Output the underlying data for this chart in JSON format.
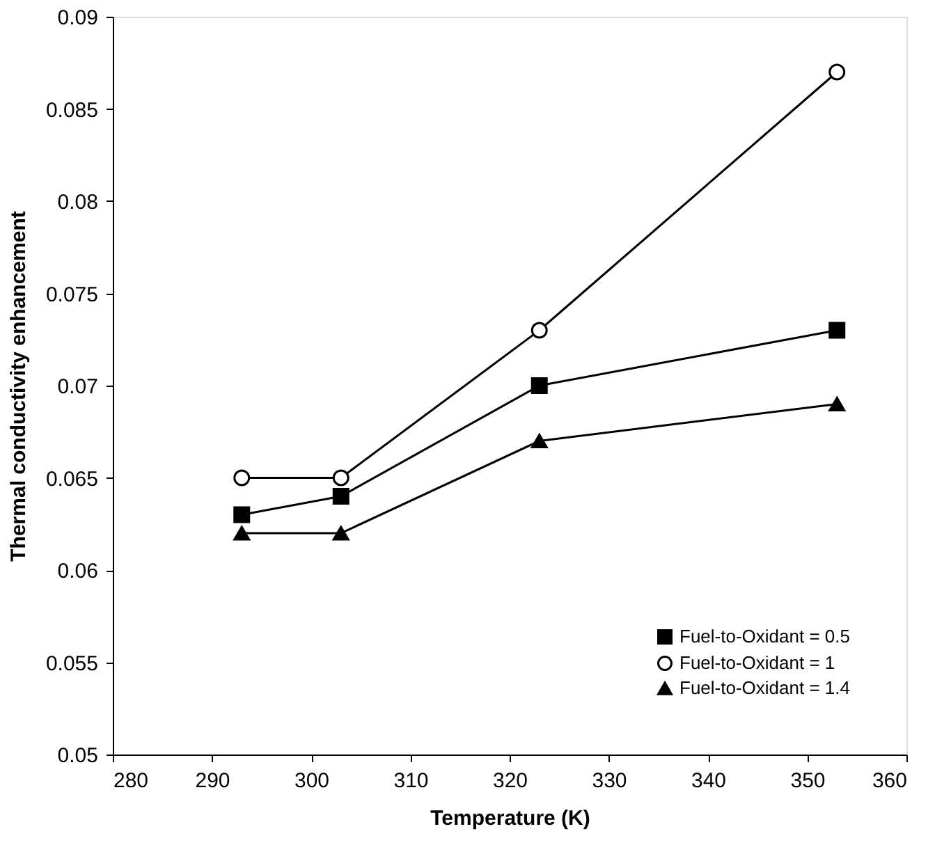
{
  "chart_data": {
    "type": "line",
    "xlabel": "Temperature (K)",
    "ylabel": "Thermal conductivity enhancement",
    "xlim": [
      280,
      360
    ],
    "xticks": [
      280,
      290,
      300,
      310,
      320,
      330,
      340,
      350,
      360
    ],
    "ylim": [
      0.05,
      0.09
    ],
    "yticks": [
      0.05,
      0.055,
      0.06,
      0.065,
      0.07,
      0.075,
      0.08,
      0.085,
      0.09
    ],
    "grid": false,
    "legend": "bottom right",
    "line_style": "solid",
    "series": [
      {
        "name": "Fuel-to-Oxidant = 0.5",
        "color": "#000000",
        "marker": "square",
        "x": [
          293,
          303,
          323,
          353
        ],
        "values": [
          0.063,
          0.064,
          0.07,
          0.073
        ]
      },
      {
        "name": "Fuel-to-Oxidant = 1",
        "color": "#000000",
        "marker": "circle",
        "x": [
          293,
          303,
          323,
          353
        ],
        "values": [
          0.065,
          0.065,
          0.073,
          0.087
        ]
      },
      {
        "name": "Fuel-to-Oxidant = 1.4",
        "color": "#000000",
        "marker": "triangle",
        "x": [
          293,
          303,
          323,
          353
        ],
        "values": [
          0.062,
          0.062,
          0.067,
          0.069
        ]
      }
    ]
  }
}
